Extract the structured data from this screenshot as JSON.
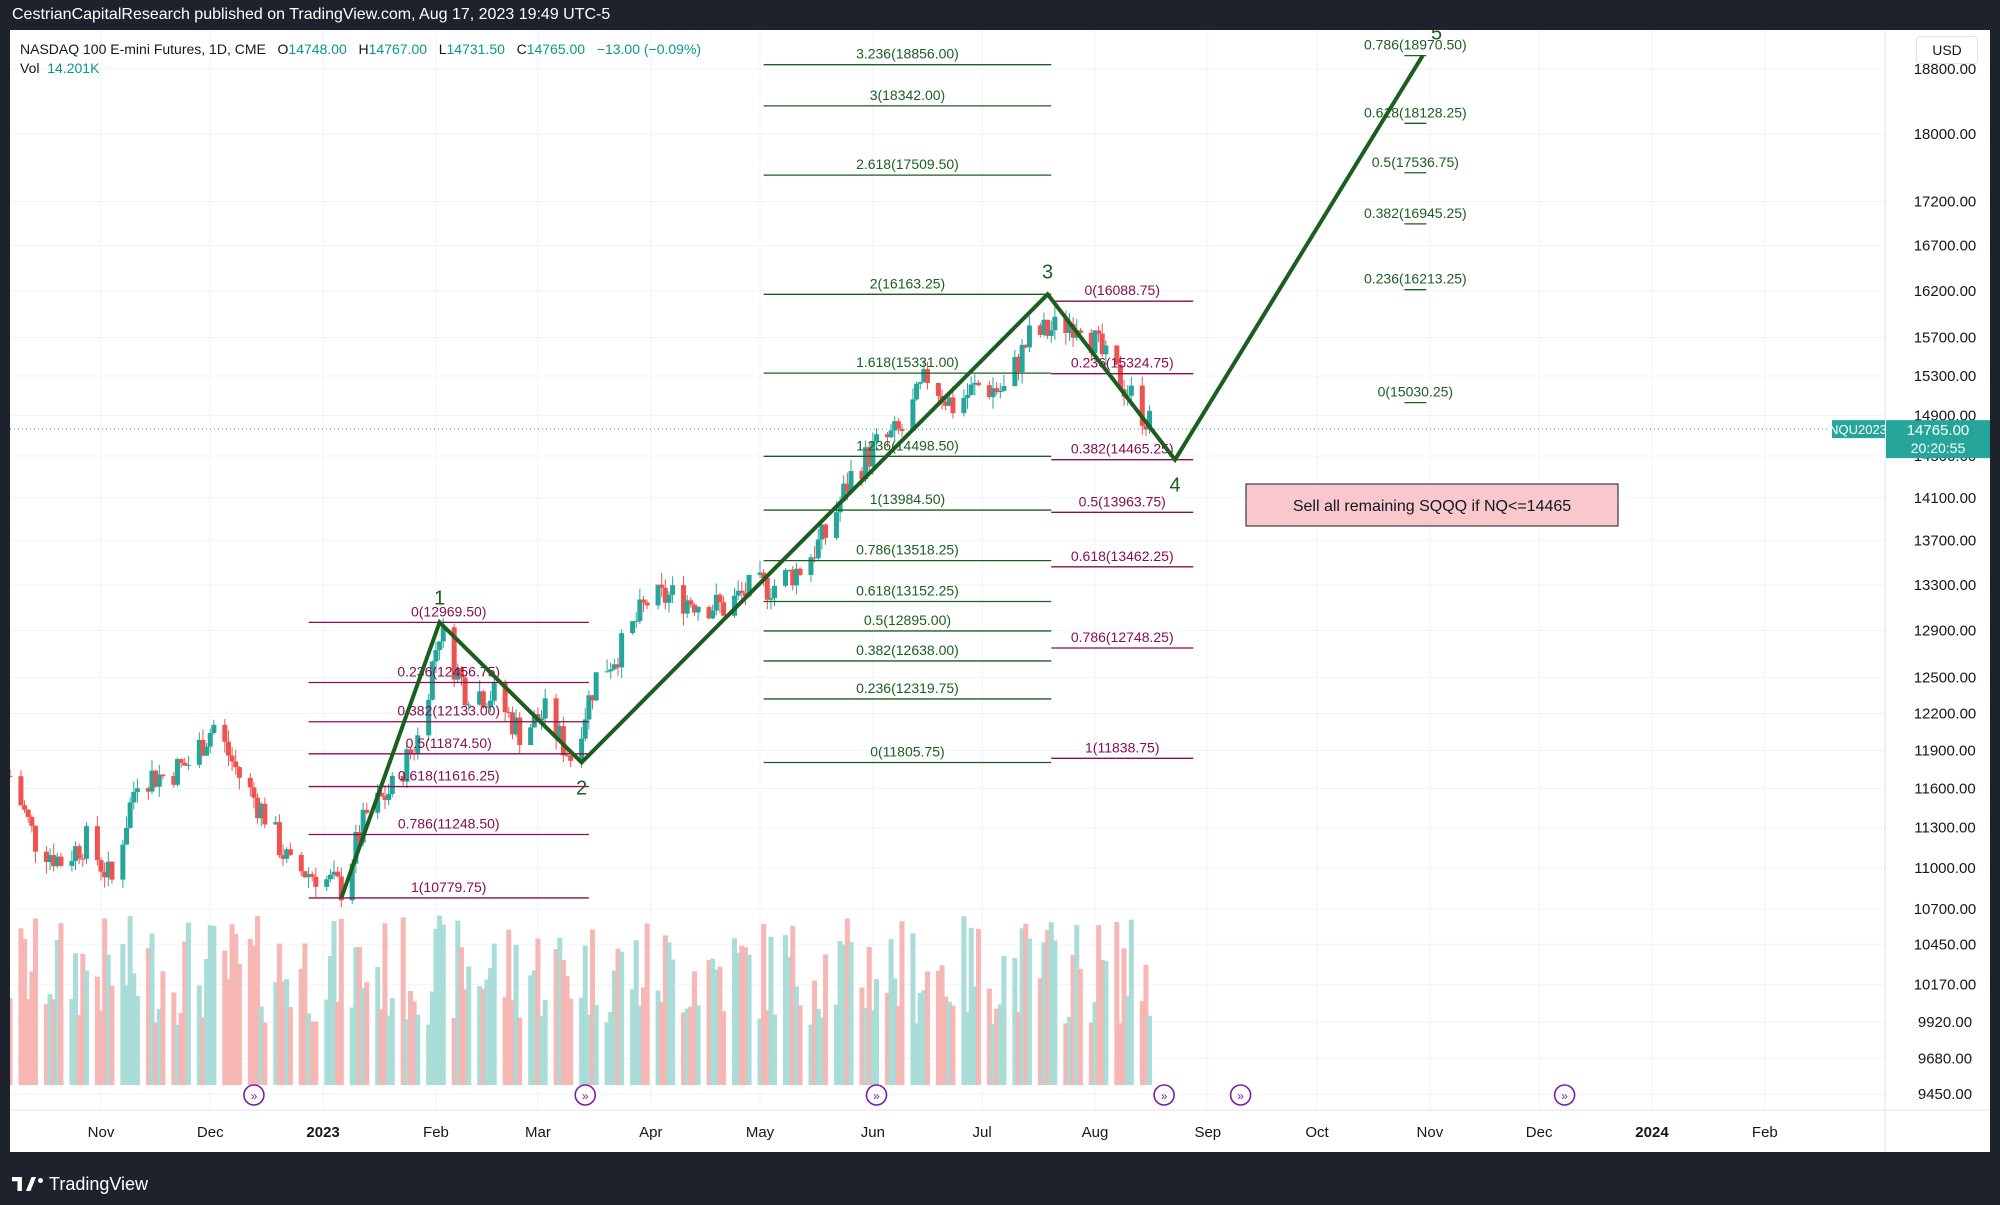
{
  "header": {
    "publish_line": "CestrianCapitalResearch published on TradingView.com, Aug 17, 2023 19:49 UTC-5"
  },
  "footer": {
    "brand": "TradingView"
  },
  "legend": {
    "instrument": "NASDAQ 100 E-mini Futures, 1D, CME",
    "o_label": "O",
    "o_value": "14748.00",
    "h_label": "H",
    "h_value": "14767.00",
    "l_label": "L",
    "l_value": "14731.50",
    "c_label": "C",
    "c_value": "14765.00",
    "change": "−13.00 (−0.09%)",
    "vol_label": "Vol",
    "vol_value": "14.201K"
  },
  "currency_button": "USD",
  "colors": {
    "up": "#26a69a",
    "down": "#ef5350",
    "green_wave": "#1b5e20",
    "fib_green": "#1b5e20",
    "fib_maroon": "#880e4f",
    "price_tag": "#26a69a",
    "note_bg": "#f8c8cc"
  },
  "chart_data": {
    "type": "candlestick",
    "y_scale": "log",
    "ylim": [
      9350,
      19300
    ],
    "y_ticks": [
      "18800.00",
      "18000.00",
      "17200.00",
      "16700.00",
      "16200.00",
      "15700.00",
      "15300.00",
      "14900.00",
      "14500.00",
      "14100.00",
      "13700.00",
      "13300.00",
      "12900.00",
      "12500.00",
      "12200.00",
      "11900.00",
      "11600.00",
      "11300.00",
      "11000.00",
      "10700.00",
      "10450.00",
      "10170.00",
      "9920.00",
      "9680.00",
      "9450.00"
    ],
    "y_tick_values": [
      18800,
      18000,
      17200,
      16700,
      16200,
      15700,
      15300,
      14900,
      14500,
      14100,
      13700,
      13300,
      12900,
      12500,
      12200,
      11900,
      11600,
      11300,
      11000,
      10700,
      10450,
      10170,
      9920,
      9680,
      9450
    ],
    "x_ticks": [
      "Nov",
      "Dec",
      "2023",
      "Feb",
      "Mar",
      "Apr",
      "May",
      "Jun",
      "Jul",
      "Aug",
      "Sep",
      "Oct",
      "Nov",
      "Dec",
      "2024",
      "Feb"
    ],
    "x_tick_dates": [
      "2022-11-01",
      "2022-12-01",
      "2023-01-01",
      "2023-02-01",
      "2023-03-01",
      "2023-04-01",
      "2023-05-01",
      "2023-06-01",
      "2023-07-01",
      "2023-08-01",
      "2023-09-01",
      "2023-10-01",
      "2023-11-01",
      "2023-12-01",
      "2024-01-01",
      "2024-02-01"
    ],
    "x_range": [
      "2022-10-07",
      "2024-03-05"
    ],
    "last_price": {
      "symbol": "NQU2023",
      "price": "14765.00",
      "countdown": "20:20:55",
      "value": 14765
    },
    "price_path": [
      {
        "date": "2022-10-07",
        "close": 11700
      },
      {
        "date": "2022-10-14",
        "close": 11200
      },
      {
        "date": "2022-10-21",
        "close": 11050
      },
      {
        "date": "2022-10-28",
        "close": 11200
      },
      {
        "date": "2022-11-04",
        "close": 10900
      },
      {
        "date": "2022-11-11",
        "close": 11700
      },
      {
        "date": "2022-11-18",
        "close": 11700
      },
      {
        "date": "2022-11-25",
        "close": 11800
      },
      {
        "date": "2022-12-02",
        "close": 12100
      },
      {
        "date": "2022-12-09",
        "close": 11700
      },
      {
        "date": "2022-12-16",
        "close": 11400
      },
      {
        "date": "2022-12-23",
        "close": 11000
      },
      {
        "date": "2022-12-30",
        "close": 10950
      },
      {
        "date": "2023-01-06",
        "close": 10850
      },
      {
        "date": "2023-01-13",
        "close": 11400
      },
      {
        "date": "2023-01-20",
        "close": 11600
      },
      {
        "date": "2023-01-27",
        "close": 12000
      },
      {
        "date": "2023-02-02",
        "close": 12900
      },
      {
        "date": "2023-02-09",
        "close": 12400
      },
      {
        "date": "2023-02-17",
        "close": 12350
      },
      {
        "date": "2023-02-24",
        "close": 12050
      },
      {
        "date": "2023-03-03",
        "close": 12200
      },
      {
        "date": "2023-03-10",
        "close": 11850
      },
      {
        "date": "2023-03-17",
        "close": 12500
      },
      {
        "date": "2023-03-24",
        "close": 12750
      },
      {
        "date": "2023-03-31",
        "close": 13150
      },
      {
        "date": "2023-04-07",
        "close": 13200
      },
      {
        "date": "2023-04-14",
        "close": 13150
      },
      {
        "date": "2023-04-21",
        "close": 13100
      },
      {
        "date": "2023-04-28",
        "close": 13250
      },
      {
        "date": "2023-05-05",
        "close": 13300
      },
      {
        "date": "2023-05-12",
        "close": 13450
      },
      {
        "date": "2023-05-19",
        "close": 13750
      },
      {
        "date": "2023-05-26",
        "close": 14300
      },
      {
        "date": "2023-06-02",
        "close": 14600
      },
      {
        "date": "2023-06-09",
        "close": 14750
      },
      {
        "date": "2023-06-16",
        "close": 15300
      },
      {
        "date": "2023-06-23",
        "close": 15000
      },
      {
        "date": "2023-06-30",
        "close": 15200
      },
      {
        "date": "2023-07-07",
        "close": 15150
      },
      {
        "date": "2023-07-14",
        "close": 15700
      },
      {
        "date": "2023-07-21",
        "close": 15800
      },
      {
        "date": "2023-07-28",
        "close": 15900
      },
      {
        "date": "2023-08-04",
        "close": 15450
      },
      {
        "date": "2023-08-11",
        "close": 15100
      },
      {
        "date": "2023-08-17",
        "close": 14765
      }
    ],
    "wave_path": [
      {
        "label": "",
        "date": "2023-01-06",
        "price": 10779.75
      },
      {
        "label": "1",
        "date": "2023-02-02",
        "price": 12969.5
      },
      {
        "label": "2",
        "date": "2023-03-13",
        "price": 11805.75
      },
      {
        "label": "3",
        "date": "2023-07-19",
        "price": 16163.25
      },
      {
        "label": "4",
        "date": "2023-08-23",
        "price": 14465.25
      },
      {
        "label": "5",
        "date": "2023-10-30",
        "price": 18970.5
      }
    ],
    "fib_sets": [
      {
        "id": "fib-a",
        "color": "maroon",
        "x_from": "2022-12-28",
        "x_to": "2023-03-15",
        "levels": [
          {
            "label": "0(12969.50)",
            "price": 12969.5
          },
          {
            "label": "0.236(12456.75)",
            "price": 12456.75
          },
          {
            "label": "0.382(12133.00)",
            "price": 12133
          },
          {
            "label": "0.5(11874.50)",
            "price": 11874.5
          },
          {
            "label": "0.618(11616.25)",
            "price": 11616.25
          },
          {
            "label": "0.786(11248.50)",
            "price": 11248.5
          },
          {
            "label": "1(10779.75)",
            "price": 10779.75
          }
        ]
      },
      {
        "id": "fib-b",
        "color": "green",
        "x_from": "2023-05-02",
        "x_to": "2023-07-20",
        "levels": [
          {
            "label": "3.236(18856.00)",
            "price": 18856
          },
          {
            "label": "3(18342.00)",
            "price": 18342
          },
          {
            "label": "2.618(17509.50)",
            "price": 17509.5
          },
          {
            "label": "2(16163.25)",
            "price": 16163.25
          },
          {
            "label": "1.618(15331.00)",
            "price": 15331
          },
          {
            "label": "1.236(14498.50)",
            "price": 14498.5
          },
          {
            "label": "1(13984.50)",
            "price": 13984.5
          },
          {
            "label": "0.786(13518.25)",
            "price": 13518.25
          },
          {
            "label": "0.618(13152.25)",
            "price": 13152.25
          },
          {
            "label": "0.5(12895.00)",
            "price": 12895
          },
          {
            "label": "0.382(12638.00)",
            "price": 12638
          },
          {
            "label": "0.236(12319.75)",
            "price": 12319.75
          },
          {
            "label": "0(11805.75)",
            "price": 11805.75
          }
        ]
      },
      {
        "id": "fib-c",
        "color": "maroon",
        "x_from": "2023-07-20",
        "x_to": "2023-08-28",
        "levels": [
          {
            "label": "0(16088.75)",
            "price": 16088.75
          },
          {
            "label": "0.236(15324.75)",
            "price": 15324.75
          },
          {
            "label": "0.382(14465.25)",
            "price": 14465.25
          },
          {
            "label": "0.5(13963.75)",
            "price": 13963.75
          },
          {
            "label": "0.618(13462.25)",
            "price": 13462.25
          },
          {
            "label": "0.786(12748.25)",
            "price": 12748.25
          },
          {
            "label": "1(11838.75)",
            "price": 11838.75
          }
        ]
      },
      {
        "id": "fib-d",
        "color": "green",
        "x_from": "2023-10-25",
        "x_to": "2023-10-31",
        "levels": [
          {
            "label": "0.786(18970.50)",
            "price": 18970.5
          },
          {
            "label": "0.618(18128.25)",
            "price": 18128.25
          },
          {
            "label": "0.5(17536.75)",
            "price": 17536.75
          },
          {
            "label": "0.382(16945.25)",
            "price": 16945.25
          },
          {
            "label": "0.236(16213.25)",
            "price": 16213.25
          },
          {
            "label": "0(15030.25)",
            "price": 15030.25
          }
        ]
      }
    ],
    "note": {
      "text": "Sell all remaining SQQQ if NQ<=14465"
    },
    "event_markers": [
      "2022-12-13",
      "2023-03-14",
      "2023-06-02",
      "2023-08-20",
      "2023-09-10",
      "2023-12-08"
    ],
    "volume": {
      "max_level_text": "",
      "note": "volume histogram, relative"
    }
  }
}
